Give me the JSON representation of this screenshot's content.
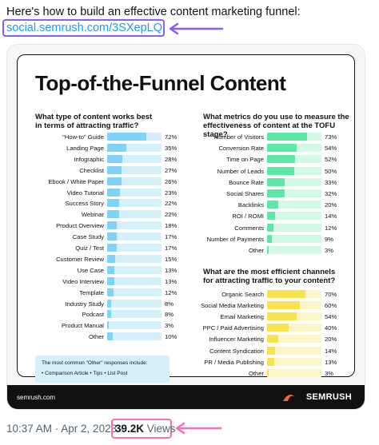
{
  "tweet": {
    "text": "Here's how to build an effective content marketing funnel:",
    "link": "social.semrush.com/3SXepLQ.",
    "timestamp": "10:37 AM · Apr 2, 2023 · ",
    "views_count": "39.2K",
    "views_label": " Views"
  },
  "colors": {
    "link_box": "#8b5cf6",
    "views_box": "#f472b6",
    "blue_fill": "#7fd3f7",
    "blue_track": "#d6f0fb",
    "green_fill": "#5ee8a7",
    "green_track": "#d3f8e6",
    "yellow_fill": "#f9e250",
    "yellow_track": "#fbf5c8"
  },
  "infographic": {
    "title": "Top-of-the-Funnel Content",
    "q1": [
      "What type of content works best",
      "in terms of attracting traffic?"
    ],
    "q2": [
      "What metrics do you use to measure the",
      "effectiveness of content at the TOFU stage?"
    ],
    "q3": [
      "What are the most efficient channels",
      "for attracting traffic to your content?"
    ],
    "other_note": "The most common \"Other\" responses include:",
    "other_items": "•  Comparison Article    •  Tips    •  List Post",
    "footer_site": "semrush.com",
    "brand": "SEMRUSH"
  },
  "chart_data": [
    {
      "type": "bar",
      "title": "What type of content works best in terms of attracting traffic?",
      "categories": [
        "\"How-to\" Guide",
        "Landing Page",
        "Infographic",
        "Checklist",
        "Ebook / White Paper",
        "Video Tutorial",
        "Success Story",
        "Webinar",
        "Product Overview",
        "Case Study",
        "Quiz / Test",
        "Customer Review",
        "Use Case",
        "Video Interview",
        "Template",
        "Industry Study",
        "Podcast",
        "Product Manual",
        "Other"
      ],
      "values": [
        72,
        35,
        28,
        27,
        26,
        23,
        22,
        22,
        18,
        17,
        17,
        15,
        13,
        13,
        12,
        8,
        8,
        3,
        10
      ],
      "labels": [
        "72%",
        "35%",
        "28%",
        "27%",
        "26%",
        "23%",
        "22%",
        "22%",
        "18%",
        "17%",
        "17%",
        "15%",
        "13%",
        "13%",
        "12%",
        "8%",
        "8%",
        "3%",
        "10%"
      ]
    },
    {
      "type": "bar",
      "title": "What metrics do you use to measure the effectiveness of content at the TOFU stage?",
      "categories": [
        "Number of Visitors",
        "Conversion Rate",
        "Time on Page",
        "Number of Leads",
        "Bounce Rate",
        "Social Shares",
        "Backlinks",
        "ROI / ROMI",
        "Comments",
        "Number of Payments",
        "Other"
      ],
      "values": [
        73,
        54,
        52,
        50,
        33,
        32,
        20,
        14,
        12,
        9,
        3
      ],
      "labels": [
        "73%",
        "54%",
        "52%",
        "50%",
        "33%",
        "32%",
        "20%",
        "14%",
        "12%",
        "9%",
        "3%"
      ]
    },
    {
      "type": "bar",
      "title": "What are the most efficient channels for attracting traffic to your content?",
      "categories": [
        "Organic Search",
        "Social Media Marketing",
        "Email Marketing",
        "PPC / Paid Advertising",
        "Influencer Marketing",
        "Content Syndication",
        "PR / Media Publishing",
        "Other"
      ],
      "values": [
        70,
        60,
        54,
        40,
        20,
        14,
        13,
        3
      ],
      "labels": [
        "70%",
        "60%",
        "54%",
        "40%",
        "20%",
        "14%",
        "13%",
        "3%"
      ]
    }
  ]
}
